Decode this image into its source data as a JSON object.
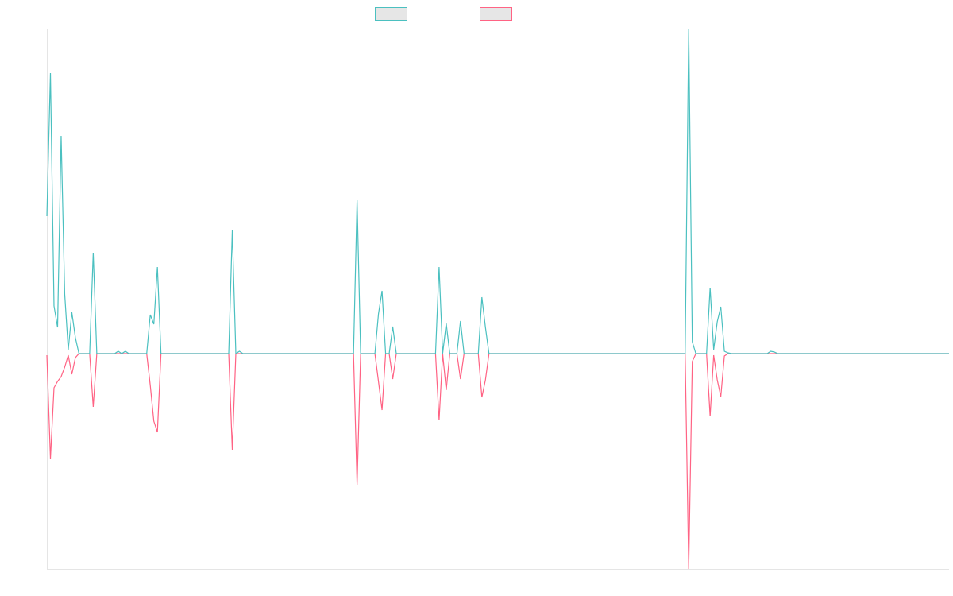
{
  "chart_data": {
    "type": "line",
    "ylim": [
      -271,
      409
    ],
    "series": [
      {
        "color": "#4bc0c0",
        "values": [
          173,
          353,
          60,
          33,
          274,
          75,
          5,
          52,
          20,
          0,
          0,
          0,
          0,
          127,
          0,
          0,
          0,
          0,
          0,
          0,
          3,
          0,
          3,
          0,
          0,
          0,
          0,
          0,
          0,
          49,
          37,
          109,
          0,
          0,
          0,
          0,
          0,
          0,
          0,
          0,
          0,
          0,
          0,
          0,
          0,
          0,
          0,
          0,
          0,
          0,
          0,
          0,
          155,
          0,
          3,
          0,
          0,
          0,
          0,
          0,
          0,
          0,
          0,
          0,
          0,
          0,
          0,
          0,
          0,
          0,
          0,
          0,
          0,
          0,
          0,
          0,
          0,
          0,
          0,
          0,
          0,
          0,
          0,
          0,
          0,
          0,
          0,
          193,
          0,
          0,
          0,
          0,
          0,
          50,
          79,
          0,
          0,
          34,
          0,
          0,
          0,
          0,
          0,
          0,
          0,
          0,
          0,
          0,
          0,
          0,
          109,
          0,
          38,
          0,
          0,
          0,
          41,
          0,
          0,
          0,
          0,
          0,
          71,
          33,
          0,
          0,
          0,
          0,
          0,
          0,
          0,
          0,
          0,
          0,
          0,
          0,
          0,
          0,
          0,
          0,
          0,
          0,
          0,
          0,
          0,
          0,
          0,
          0,
          0,
          0,
          0,
          0,
          0,
          0,
          0,
          0,
          0,
          0,
          0,
          0,
          0,
          0,
          0,
          0,
          0,
          0,
          0,
          0,
          0,
          0,
          0,
          0,
          0,
          0,
          0,
          0,
          0,
          0,
          0,
          0,
          409,
          15,
          0,
          0,
          0,
          0,
          83,
          5,
          40,
          59,
          3,
          1,
          0,
          0,
          0,
          0,
          0,
          0,
          0,
          0,
          0,
          0,
          0,
          3,
          2,
          0,
          0,
          0,
          0,
          0,
          0,
          0,
          0,
          0,
          0,
          0,
          0,
          0,
          0,
          0,
          0,
          0,
          0,
          0,
          0,
          0,
          0,
          0,
          0,
          0,
          0,
          0,
          0,
          0,
          0,
          0,
          0,
          0,
          0,
          0,
          0,
          0,
          0,
          0,
          0,
          0,
          0,
          0,
          0,
          0,
          0,
          0,
          0,
          0
        ]
      },
      {
        "color": "#ff6384",
        "values": [
          -2,
          -132,
          -43,
          -35,
          -29,
          -17,
          -2,
          -26,
          -5,
          0,
          0,
          0,
          0,
          -67,
          0,
          0,
          0,
          0,
          0,
          0,
          0,
          0,
          0,
          0,
          0,
          0,
          0,
          0,
          0,
          -40,
          -85,
          -99,
          0,
          0,
          0,
          0,
          0,
          0,
          0,
          0,
          0,
          0,
          0,
          0,
          0,
          0,
          0,
          0,
          0,
          0,
          0,
          0,
          -121,
          0,
          0,
          0,
          0,
          0,
          0,
          0,
          0,
          0,
          0,
          0,
          0,
          0,
          0,
          0,
          0,
          0,
          0,
          0,
          0,
          0,
          0,
          0,
          0,
          0,
          0,
          0,
          0,
          0,
          0,
          0,
          0,
          0,
          0,
          -165,
          0,
          0,
          0,
          0,
          0,
          -35,
          -71,
          0,
          0,
          -32,
          0,
          0,
          0,
          0,
          0,
          0,
          0,
          0,
          0,
          0,
          0,
          0,
          -84,
          0,
          -46,
          0,
          0,
          0,
          -32,
          0,
          0,
          0,
          0,
          0,
          -55,
          -33,
          0,
          0,
          0,
          0,
          0,
          0,
          0,
          0,
          0,
          0,
          0,
          0,
          0,
          0,
          0,
          0,
          0,
          0,
          0,
          0,
          0,
          0,
          0,
          0,
          0,
          0,
          0,
          0,
          0,
          0,
          0,
          0,
          0,
          0,
          0,
          0,
          0,
          0,
          0,
          0,
          0,
          0,
          0,
          0,
          0,
          0,
          0,
          0,
          0,
          0,
          0,
          0,
          0,
          0,
          0,
          0,
          -271,
          -10,
          0,
          0,
          0,
          0,
          -79,
          -2,
          -33,
          -54,
          -3,
          0,
          0,
          0,
          0,
          0,
          0,
          0,
          0,
          0,
          0,
          0,
          0,
          0,
          0,
          0,
          0,
          0,
          0,
          0,
          0,
          0,
          0,
          0,
          0,
          0,
          0,
          0,
          0,
          0,
          0,
          0,
          0,
          0,
          0,
          0,
          0,
          0,
          0,
          0,
          0,
          0,
          0,
          0,
          0,
          0,
          0,
          0,
          0,
          0,
          0,
          0,
          0,
          0,
          0,
          0,
          0,
          0,
          0,
          0,
          0,
          0,
          0,
          0
        ]
      }
    ]
  }
}
